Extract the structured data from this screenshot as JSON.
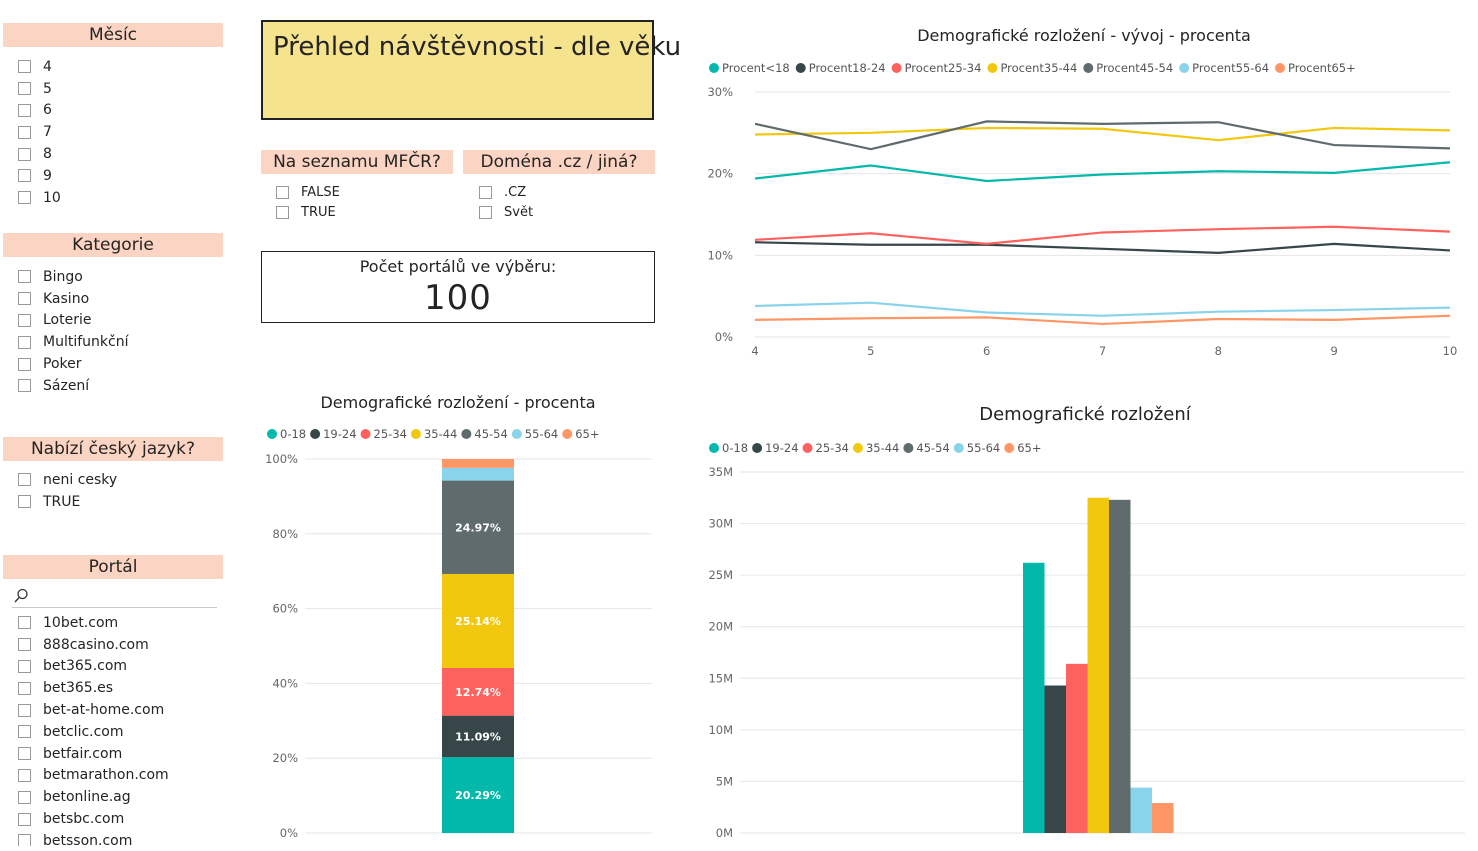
{
  "filters": {
    "month": {
      "title": "Měsíc",
      "items": [
        "4",
        "5",
        "6",
        "7",
        "8",
        "9",
        "10"
      ]
    },
    "category": {
      "title": "Kategorie",
      "items": [
        "Bingo",
        "Kasino",
        "Loterie",
        "Multifunkční",
        "Poker",
        "Sázení"
      ]
    },
    "czech": {
      "title": "Nabízí český jazyk?",
      "items": [
        "neni cesky",
        "TRUE"
      ]
    },
    "portal": {
      "title": "Portál",
      "search_icon": "search-icon",
      "items": [
        "10bet.com",
        "888casino.com",
        "bet365.com",
        "bet365.es",
        "bet-at-home.com",
        "betclic.com",
        "betfair.com",
        "betmarathon.com",
        "betonline.ag",
        "betsbc.com",
        "betsson.com"
      ]
    },
    "mfcr": {
      "title": "Na seznamu MFČR?",
      "items": [
        "FALSE",
        "TRUE"
      ]
    },
    "domain": {
      "title": "Doména .cz / jiná?",
      "items": [
        ".CZ",
        "Svět"
      ]
    }
  },
  "report_title": "Přehled návštěvnosti - dle věku",
  "card": {
    "label": "Počet portálů ve výběru:",
    "value": "100"
  },
  "colors": {
    "slicer_header": "#fbd4c3",
    "title_bg": "#f6e38d",
    "series": [
      "#01b8aa",
      "#374649",
      "#fd625e",
      "#f2c80f",
      "#5f6b6d",
      "#8ad4eb",
      "#fe9666"
    ]
  },
  "chart_data": [
    {
      "type": "line",
      "title": "Demografické rozložení - vývoj - procenta",
      "x": [
        "4",
        "5",
        "6",
        "7",
        "8",
        "9",
        "10"
      ],
      "ylim": [
        0,
        30
      ],
      "y_ticks": [
        "0%",
        "10%",
        "20%",
        "30%"
      ],
      "grid": true,
      "legend_position": "top-left",
      "series": [
        {
          "name": "Procent<18",
          "values": [
            19.4,
            21.0,
            19.1,
            19.9,
            20.3,
            20.1,
            21.4
          ]
        },
        {
          "name": "Procent18-24",
          "values": [
            11.6,
            11.3,
            11.3,
            10.8,
            10.3,
            11.4,
            10.6
          ]
        },
        {
          "name": "Procent25-34",
          "values": [
            11.9,
            12.7,
            11.4,
            12.8,
            13.2,
            13.5,
            12.9
          ]
        },
        {
          "name": "Procent35-44",
          "values": [
            24.8,
            25.0,
            25.6,
            25.5,
            24.1,
            25.6,
            25.3
          ]
        },
        {
          "name": "Procent45-54",
          "values": [
            26.1,
            23.0,
            26.4,
            26.1,
            26.3,
            23.5,
            23.1
          ]
        },
        {
          "name": "Procent55-64",
          "values": [
            3.8,
            4.2,
            3.0,
            2.6,
            3.1,
            3.3,
            3.6
          ]
        },
        {
          "name": "Procent65+",
          "values": [
            2.1,
            2.3,
            2.4,
            1.6,
            2.2,
            2.1,
            2.6
          ]
        }
      ]
    },
    {
      "type": "bar",
      "title": "Demografické rozložení - procenta",
      "stacked": true,
      "ylim": [
        0,
        100
      ],
      "y_ticks": [
        "0%",
        "20%",
        "40%",
        "60%",
        "80%",
        "100%"
      ],
      "legend_position": "top-left",
      "series": [
        {
          "name": "0-18",
          "value": 20.29,
          "label": "20.29%"
        },
        {
          "name": "19-24",
          "value": 11.09,
          "label": "11.09%"
        },
        {
          "name": "25-34",
          "value": 12.74,
          "label": "12.74%"
        },
        {
          "name": "35-44",
          "value": 25.14,
          "label": "25.14%"
        },
        {
          "name": "45-54",
          "value": 24.97,
          "label": "24.97%"
        },
        {
          "name": "55-64",
          "value": 3.4,
          "label": ""
        },
        {
          "name": "65+",
          "value": 2.37,
          "label": ""
        }
      ]
    },
    {
      "type": "bar",
      "title": "Demografické rozložení",
      "ylim": [
        0,
        35000000
      ],
      "y_ticks": [
        "0M",
        "5M",
        "10M",
        "15M",
        "20M",
        "25M",
        "30M",
        "35M"
      ],
      "grid": true,
      "legend_position": "top-left",
      "series": [
        {
          "name": "0-18",
          "value": 26200000
        },
        {
          "name": "19-24",
          "value": 14300000
        },
        {
          "name": "25-34",
          "value": 16400000
        },
        {
          "name": "35-44",
          "value": 32500000
        },
        {
          "name": "45-54",
          "value": 32300000
        },
        {
          "name": "55-64",
          "value": 4400000
        },
        {
          "name": "65+",
          "value": 2900000
        }
      ]
    }
  ]
}
